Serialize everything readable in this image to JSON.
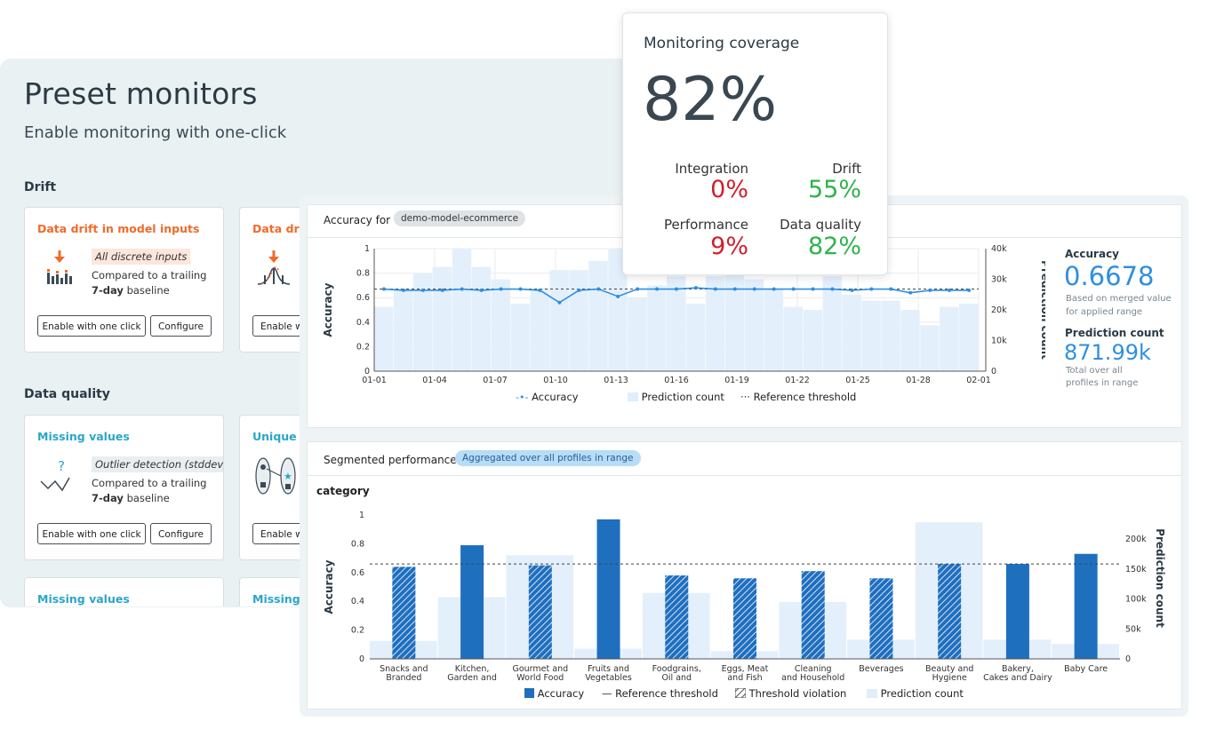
{
  "preset": {
    "title": "Preset monitors",
    "subtitle": "Enable monitoring with one-click",
    "drift_heading": "Drift",
    "dq_heading": "Data quality",
    "cards": {
      "c1": {
        "title": "Data drift in model inputs",
        "tag": "All discrete inputs",
        "desc1": "Compared to a trailing",
        "desc2_bold": "7-day",
        "desc2_rest": " baseline",
        "btn_enable": "Enable with one click",
        "btn_config": "Configure"
      },
      "c2": {
        "title": "Data drif",
        "btn_enable": "Enable w"
      },
      "c3": {
        "title": "Missing values",
        "tag": "Outlier detection (stddev)",
        "desc1": "Compared to a trailing",
        "desc2_bold": "7-day",
        "desc2_rest": " baseline",
        "btn_enable": "Enable with one click",
        "btn_config": "Configure"
      },
      "c4": {
        "title": "Unique v",
        "btn_enable": "Enable w"
      },
      "c5": {
        "title": "Missing values"
      },
      "c6": {
        "title": "Missing v"
      }
    }
  },
  "coverage": {
    "title": "Monitoring coverage",
    "value": "82%",
    "integration_label": "Integration",
    "integration_value": "0%",
    "drift_label": "Drift",
    "drift_value": "55%",
    "performance_label": "Performance",
    "performance_value": "9%",
    "dq_label": "Data quality",
    "dq_value": "82%"
  },
  "accuracy_panel": {
    "header": "Accuracy for",
    "model_chip": "demo-model-ecommerce",
    "side_accuracy_title": "Accuracy",
    "side_accuracy_value": "0.6678",
    "side_accuracy_note1": "Based on merged value",
    "side_accuracy_note2": "for applied range",
    "side_pred_title": "Prediction count",
    "side_pred_value": "871.99k",
    "side_pred_note1": "Total over all",
    "side_pred_note2": "profiles in range",
    "legend_accuracy": "Accuracy",
    "legend_pred": "Prediction count",
    "legend_ref": "Reference threshold"
  },
  "segment_panel": {
    "header": "Segmented performance",
    "chip": "Aggregated over all profiles in range",
    "group": "category",
    "legend_accuracy": "Accuracy",
    "legend_ref": "Reference threshold",
    "legend_violation": "Threshold violation",
    "legend_pred": "Prediction count"
  },
  "colors": {
    "accent_blue": "#2f8fe0",
    "bar_blue": "#1f6fbf",
    "light_bar": "#deeefb",
    "orange": "#ef6b2b",
    "red": "#d0202a",
    "green": "#2fb34a"
  },
  "chart_data": [
    {
      "type": "line",
      "xlabel": "",
      "ylabel": "Accuracy",
      "y2label": "Prediction count",
      "ylim": [
        0,
        1
      ],
      "y2lim": [
        0,
        40000
      ],
      "yticks": [
        "0",
        "0.2",
        "0.4",
        "0.6",
        "0.8",
        "1"
      ],
      "y2ticks": [
        "0",
        "10k",
        "20k",
        "30k",
        "40k"
      ],
      "xticks": [
        "01-01",
        "01-04",
        "01-07",
        "01-10",
        "01-13",
        "01-16",
        "01-19",
        "01-22",
        "01-25",
        "01-28",
        "02-01"
      ],
      "x": [
        "01-01",
        "01-02",
        "01-03",
        "01-04",
        "01-05",
        "01-06",
        "01-07",
        "01-08",
        "01-09",
        "01-10",
        "01-11",
        "01-12",
        "01-13",
        "01-14",
        "01-15",
        "01-16",
        "01-17",
        "01-18",
        "01-19",
        "01-20",
        "01-21",
        "01-22",
        "01-23",
        "01-24",
        "01-25",
        "01-26",
        "01-27",
        "01-28",
        "01-29",
        "01-30",
        "01-31"
      ],
      "series": [
        {
          "name": "Accuracy",
          "values": [
            0.67,
            0.66,
            0.66,
            0.66,
            0.67,
            0.66,
            0.67,
            0.67,
            0.66,
            0.56,
            0.66,
            0.67,
            0.61,
            0.67,
            0.67,
            0.67,
            0.68,
            0.67,
            0.67,
            0.67,
            0.67,
            0.67,
            0.67,
            0.67,
            0.66,
            0.67,
            0.67,
            0.64,
            0.66,
            0.66,
            0.66
          ]
        },
        {
          "name": "Prediction count",
          "values": [
            21000,
            27000,
            32000,
            34000,
            40000,
            34000,
            30000,
            22000,
            27000,
            33000,
            33000,
            36000,
            40000,
            24000,
            28000,
            31000,
            22000,
            31000,
            33000,
            30000,
            27000,
            21000,
            20000,
            31000,
            25000,
            23000,
            23000,
            20000,
            15000,
            21000,
            22000
          ]
        }
      ],
      "reference_threshold": 0.67
    },
    {
      "type": "bar",
      "title": "category",
      "xlabel": "",
      "ylabel": "Accuracy",
      "y2label": "Prediction count",
      "ylim": [
        0,
        1
      ],
      "y2lim": [
        0,
        240000
      ],
      "yticks": [
        "0",
        "0.2",
        "0.4",
        "0.6",
        "0.8",
        "1"
      ],
      "y2ticks": [
        "0",
        "50k",
        "100k",
        "150k",
        "200k"
      ],
      "categories": [
        "Snacks and Branded",
        "Kitchen, Garden and",
        "Gourmet and World Food",
        "Fruits and Vegetables",
        "Foodgrains, Oil and",
        "Eggs, Meat and Fish",
        "Cleaning and Household",
        "Beverages",
        "Beauty and Hygiene",
        "Bakery, Cakes and Dairy",
        "Baby Care"
      ],
      "series": [
        {
          "name": "Accuracy",
          "values": [
            0.64,
            0.79,
            0.65,
            0.97,
            0.58,
            0.56,
            0.61,
            0.56,
            0.66,
            0.66,
            0.73
          ]
        },
        {
          "name": "Prediction count",
          "values": [
            30000,
            103000,
            173000,
            17000,
            110000,
            13000,
            95000,
            32000,
            228000,
            32000,
            25000
          ]
        }
      ],
      "threshold_violation": [
        true,
        false,
        true,
        false,
        true,
        true,
        true,
        true,
        true,
        false,
        false
      ],
      "reference_threshold": 0.66
    }
  ]
}
